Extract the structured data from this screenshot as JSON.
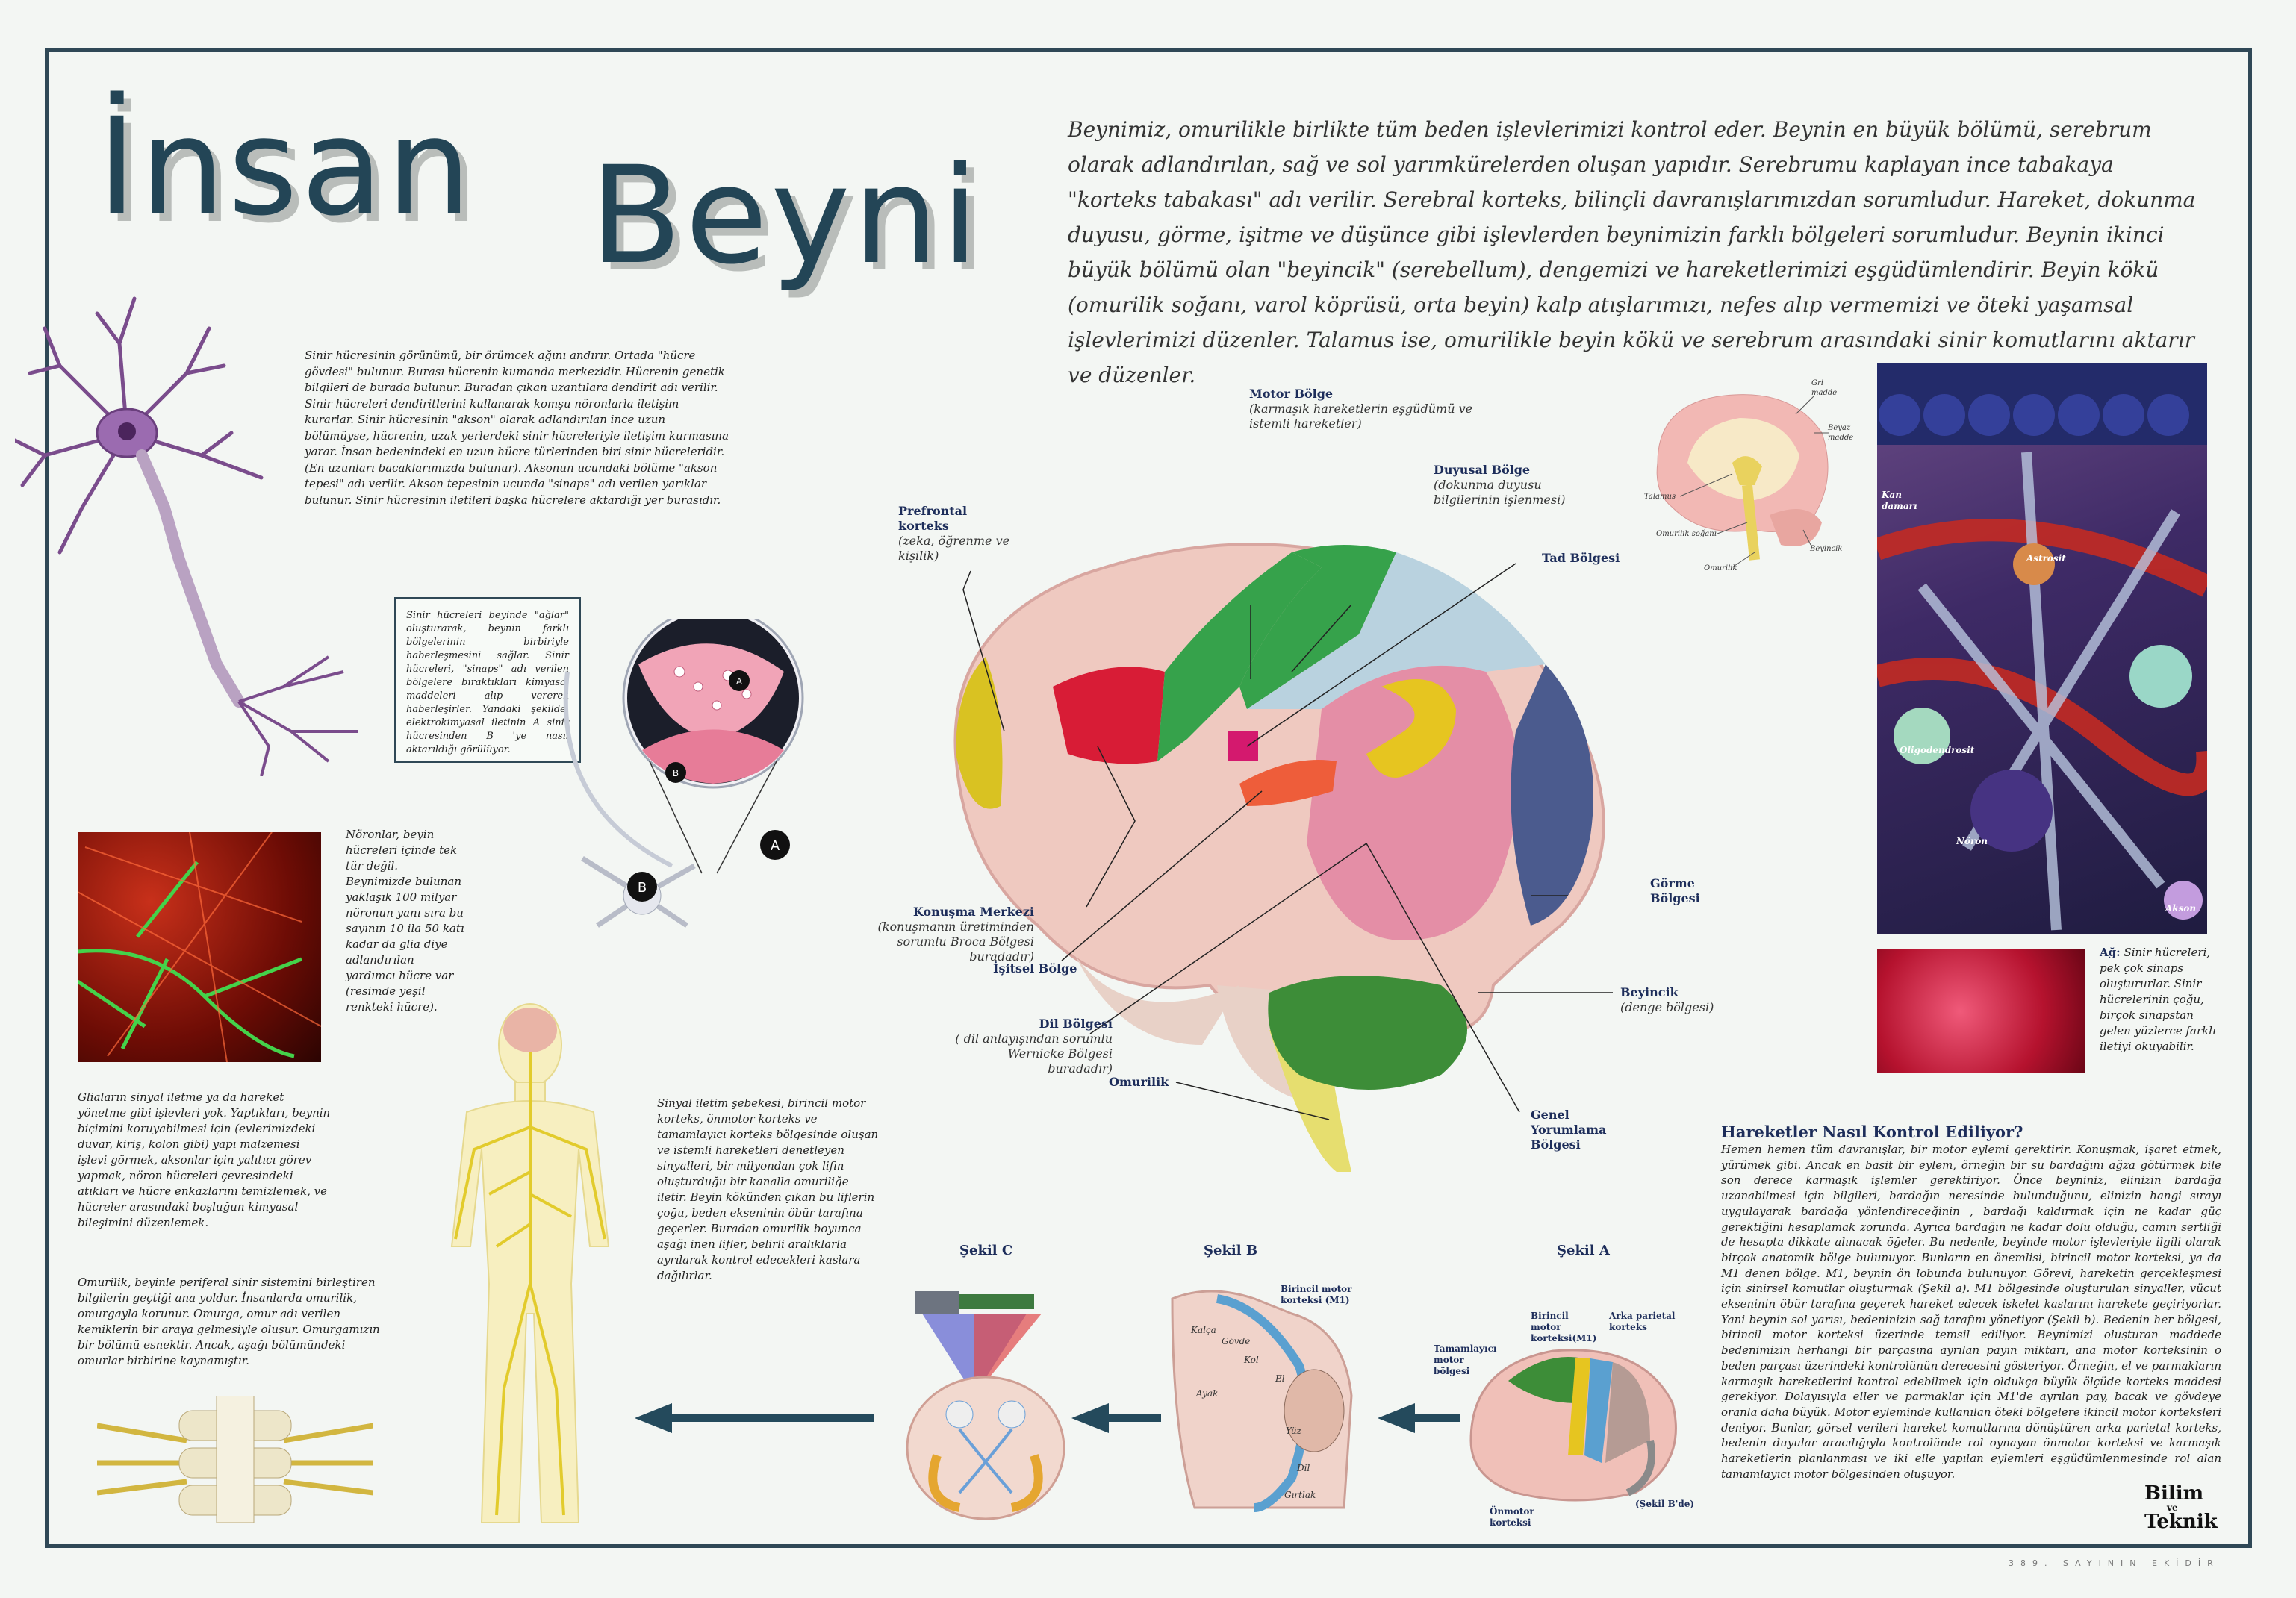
{
  "title": {
    "word1": "İnsan",
    "word2": "Beyni"
  },
  "intro": "Beynimiz, omurilikle birlikte tüm beden işlevlerimizi kontrol eder. Beynin en büyük bölümü, serebrum olarak adlandırılan, sağ ve sol yarımkürelerden oluşan yapıdır. Serebrumu kaplayan ince tabakaya \"korteks tabakası\" adı verilir. Serebral korteks, bilinçli davranışlarımızdan sorumludur. Hareket, dokunma duyusu, görme, işitme ve düşünce gibi işlevlerden beynimizin farklı bölgeleri sorumludur. Beynin ikinci büyük bölümü olan \"beyincik\" (serebellum), dengemizi ve hareketlerimizi eşgüdümlendirir. Beyin kökü (omurilik soğanı, varol köprüsü, orta beyin) kalp atışlarımızı, nefes alıp vermemizi ve öteki yaşamsal işlevlerimizi düzenler. Talamus ise, omurilikle beyin kökü ve serebrum arasındaki sinir komutlarını aktarır ve düzenler.",
  "neuron_text": "Sinir hücresinin görünümü, bir örümcek ağını andırır. Ortada \"hücre gövdesi\" bulunur. Burası hücrenin kumanda merkezidir. Hücrenin genetik bilgileri de burada bulunur. Buradan çıkan uzantılara dendirit adı verilir. Sinir hücreleri dendiritlerini kullanarak komşu nöronlarla iletişim kurarlar. Sinir hücresinin \"akson\" olarak adlandırılan ince uzun bölümüyse, hücrenin, uzak yerlerdeki sinir hücreleriyle iletişim kurmasına yarar. İnsan bedenindeki en uzun hücre türlerinden biri sinir hücreleridir. (En uzunları bacaklarımızda bulunur). Aksonun ucundaki bölüme \"akson tepesi\" adı verilir. Akson tepesinin ucunda \"sinaps\" adı verilen yarıklar bulunur. Sinir hücresinin iletileri başka hücrelere aktardığı yer burasıdır.",
  "synapse_box": "Sinir hücreleri beyinde \"ağlar\" oluşturarak, beynin farklı bölgelerinin birbiriyle haberleşmesini sağlar. Sinir hücreleri, \"sinaps\" adı verilen bölgelere bıraktıkları kimyasal maddeleri alıp vererek haberleşirler. Yandaki şekilde, elektrokimyasal iletinin A sinir hücresinden B 'ye nasıl aktarıldığı görülüyor.",
  "synapse_labels": {
    "a": "A",
    "b": "B"
  },
  "neurons_count_text": "Nöronlar, beyin hücreleri içinde tek tür değil. Beynimizde bulunan yaklaşık 100 milyar nöronun yanı sıra bu sayının 10 ila 50 katı kadar da glia diye adlandırılan yardımcı hücre var (resimde yeşil renkteki hücre).",
  "glia_text": "Gliaların sinyal iletme ya da hareket yönetme gibi işlevleri yok. Yaptıkları, beynin biçimini koruyabilmesi için (evlerimizdeki duvar, kiriş, kolon gibi) yapı malzemesi işlevi görmek, aksonlar için yalıtıcı görev yapmak, nöron hücreleri çevresindeki atıkları ve hücre enkazlarını temizlemek, ve hücreler arasındaki boşluğun kimyasal bileşimini düzenlemek.",
  "spinal_text": "Omurilik, beyinle periferal sinir sistemini birleştiren bilgilerin  geçtiği ana yoldur. İnsanlarda omurilik, omurgayla  korunur. Omurga, omur adı verilen kemiklerin bir araya gelmesiyle oluşur. Omurgamızın bir bölümü esnektir. Ancak, aşağı bölümündeki omurlar birbirine kaynamıştır.",
  "signal_text": "Sinyal iletim şebekesi, birincil motor korteks, önmotor korteks ve tamamlayıcı korteks bölgesinde oluşan ve istemli hareketleri denetleyen sinyalleri, bir milyondan çok lifin oluşturduğu bir kanalla omuriliğe iletir. Beyin kökünden çıkan bu liflerin çoğu, beden ekseninin öbür tarafına geçerler. Buradan omurilik boyunca aşağı inen lifler, belirli aralıklarla ayrılarak kontrol edecekleri kaslara dağılırlar.",
  "brain_labels": {
    "motor": {
      "name": "Motor Bölge",
      "desc": "(karmaşık hareketlerin eşgüdümü ve istemli hareketler)"
    },
    "prefrontal": {
      "name": "Prefrontal korteks",
      "desc": "(zeka, öğrenme ve kişilik)"
    },
    "duyusal": {
      "name": "Duyusal Bölge",
      "desc": "(dokunma duyusu bilgilerinin işlenmesi)"
    },
    "tad": {
      "name": "Tad Bölgesi"
    },
    "konusma": {
      "name": "Konuşma Merkezi",
      "desc": "(konuşmanın üretiminden sorumlu Broca Bölgesi buradadır)"
    },
    "isitsel": {
      "name": "İşitsel Bölge"
    },
    "dil": {
      "name": "Dil Bölgesi",
      "desc": "( dil anlayışından sorumlu Wernicke Bölgesi buradadır)"
    },
    "omurilik": {
      "name": "Omurilik"
    },
    "gorme": {
      "name": "Görme Bölgesi"
    },
    "beyincik": {
      "name": "Beyincik",
      "desc": "(denge bölgesi)"
    },
    "genel": {
      "name": "Genel Yorumlama Bölgesi"
    }
  },
  "section_labels": {
    "gri": "Gri madde",
    "beyaz": "Beyaz madde",
    "talamus": "Talamus",
    "omurilik_sogani": "Omurilik soğanı",
    "omurilik": "Omurilik",
    "beyincik": "Beyincik"
  },
  "tissue_labels": {
    "kan": "Kan damarı",
    "astrosit": "Astrosit",
    "oligo": "Oligodendrosit",
    "noron": "Nöron",
    "akson": "Akson"
  },
  "network_text": {
    "bold": "Ağ:",
    "rest": " Sinir hücreleri, pek çok sinaps oluştururlar. Sinir hücrelerinin çoğu, birçok sinapstan gelen yüzlerce farklı iletiyi okuyabilir."
  },
  "movement": {
    "heading": "Hareketler Nasıl Kontrol Ediliyor?",
    "body": "Hemen hemen tüm davranışlar, bir motor eylemi gerektirir. Konuşmak, işaret etmek, yürümek gibi. Ancak en basit bir eylem, örneğin bir su bardağını ağza götürmek bile son derece karmaşık işlemler gerektiriyor. Önce beyniniz, elinizin bardağa uzanabilmesi için bilgileri, bardağın neresinde bulunduğunu, elinizin hangi sırayı uygulayarak bardağa yönlendireceğinin , bardağı kaldırmak için ne kadar güç gerektiğini hesaplamak zorunda. Ayrıca bardağın ne kadar dolu olduğu, camın sertliği de hesapta dikkate alınacak öğeler. Bu nedenle, beyinde motor işlevleriyle ilgili olarak birçok anatomik bölge bulunuyor. Bunların en önemlisi, birincil motor korteksi, ya da M1 denen bölge. M1, beynin ön lobunda bulunuyor. Görevi, hareketin gerçekleşmesi için sinirsel komutlar oluşturmak (Şekil a). M1 bölgesinde oluşturulan sinyaller, vücut ekseninin öbür tarafına geçerek hareket edecek iskelet kaslarını harekete geçiriyorlar. Yani beynin sol yarısı, bedeninizin sağ tarafını yönetiyor (Şekil  b). Bedenin her bölgesi, birincil motor korteksi üzerinde temsil ediliyor. Beynimizi oluşturan maddede bedenimizin herhangi bir parçasına ayrılan payın miktarı, ana motor korteksinin o beden parçası üzerindeki kontrolünün derecesini gösteriyor. Örneğin, el ve parmakların karmaşık hareketlerini kontrol edebilmek için oldukça büyük ölçüde korteks maddesi gerekiyor. Dolayısıyla eller ve parmaklar için M1'de ayrılan pay, bacak ve gövdeye oranla daha büyük. Motor eyleminde kullanılan öteki bölgelere ikincil motor korteksleri deniyor.  Bunlar, görsel verileri hareket komutlarına dönüştüren  arka parietal korteks, bedenin duyular aracılığıyla kontrolünde rol oynayan önmotor korteksi  ve karmaşık  hareketlerin planlanması ve iki elle yapılan eylemleri eşgüdümlenmesinde rol alan tamamlayıcı motor bölgesinden oluşuyor."
  },
  "figures": {
    "c": "Şekil C",
    "b": "Şekil B",
    "a": "Şekil A",
    "a_labels": {
      "m1": "Birincil motor korteksi(M1)",
      "arka": "Arka parietal korteks",
      "tamam": "Tamamlayıcı motor bölgesi",
      "onmotor": "Önmotor korteksi",
      "sekil_b": "(Şekil B'de)"
    },
    "b_labels": {
      "m1": "Birincil motor korteksi (M1)",
      "kalca": "Kalça",
      "govde": "Gövde",
      "kol": "Kol",
      "el": "El",
      "yuz": "Yüz",
      "dil": "Dil",
      "girtlak": "Gırtlak",
      "ayak": "Ayak"
    }
  },
  "logo": {
    "line1": "Bilim",
    "ve": "ve",
    "line2": "Teknik"
  },
  "footer": "389. SAYININ EKİDİR"
}
